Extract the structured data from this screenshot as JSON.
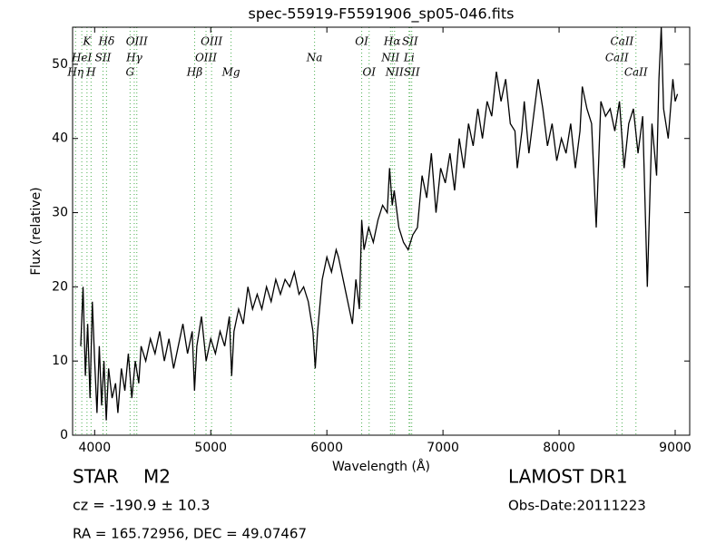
{
  "chart_data": {
    "type": "line",
    "title": "spec-55919-F5591906_sp05-046.fits",
    "x_label": "Wavelength (Å)",
    "y_label": "Flux (relative)",
    "xlim": [
      3810,
      9125
    ],
    "ylim": [
      0,
      55
    ],
    "xticks": [
      4000,
      5000,
      6000,
      7000,
      8000,
      9000
    ],
    "yticks": [
      0,
      10,
      20,
      30,
      40,
      50
    ],
    "series": [
      {
        "name": "Flux",
        "color": "#000000",
        "x": [
          3880,
          3900,
          3920,
          3940,
          3960,
          3980,
          4000,
          4020,
          4040,
          4060,
          4080,
          4100,
          4120,
          4150,
          4180,
          4200,
          4230,
          4260,
          4290,
          4320,
          4350,
          4380,
          4400,
          4440,
          4480,
          4520,
          4560,
          4600,
          4640,
          4680,
          4720,
          4760,
          4800,
          4840,
          4860,
          4880,
          4920,
          4960,
          5000,
          5040,
          5080,
          5120,
          5160,
          5180,
          5200,
          5240,
          5280,
          5320,
          5360,
          5400,
          5440,
          5480,
          5520,
          5560,
          5600,
          5640,
          5680,
          5720,
          5760,
          5800,
          5840,
          5880,
          5900,
          5920,
          5960,
          6000,
          6040,
          6080,
          6100,
          6140,
          6180,
          6220,
          6250,
          6280,
          6300,
          6320,
          6360,
          6400,
          6440,
          6480,
          6520,
          6540,
          6563,
          6580,
          6620,
          6660,
          6700,
          6740,
          6780,
          6820,
          6860,
          6900,
          6940,
          6980,
          7020,
          7060,
          7100,
          7140,
          7180,
          7220,
          7260,
          7300,
          7340,
          7380,
          7420,
          7460,
          7500,
          7540,
          7580,
          7620,
          7640,
          7680,
          7700,
          7740,
          7780,
          7820,
          7860,
          7900,
          7940,
          7980,
          8020,
          8060,
          8100,
          8140,
          8180,
          8200,
          8240,
          8280,
          8320,
          8360,
          8400,
          8440,
          8480,
          8520,
          8560,
          8600,
          8640,
          8680,
          8720,
          8760,
          8800,
          8840,
          8860,
          8880,
          8900,
          8940,
          8980,
          9000,
          9020
        ],
        "values": [
          12,
          20,
          8,
          15,
          5,
          18,
          10,
          3,
          12,
          4,
          10,
          2,
          9,
          5,
          7,
          3,
          9,
          6,
          11,
          5,
          10,
          7,
          12,
          10,
          13,
          11,
          14,
          10,
          13,
          9,
          12,
          15,
          11,
          14,
          6,
          12,
          16,
          10,
          13,
          11,
          14,
          12,
          16,
          8,
          14,
          17,
          15,
          20,
          17,
          19,
          17,
          20,
          18,
          21,
          19,
          21,
          20,
          22,
          19,
          20,
          18,
          14,
          9,
          14,
          21,
          24,
          22,
          25,
          24,
          21,
          18,
          15,
          21,
          17,
          29,
          25,
          28,
          26,
          29,
          31,
          30,
          36,
          31,
          33,
          28,
          26,
          25,
          27,
          28,
          35,
          32,
          38,
          30,
          36,
          34,
          38,
          33,
          40,
          36,
          42,
          39,
          44,
          40,
          45,
          43,
          49,
          45,
          48,
          42,
          41,
          36,
          41,
          45,
          38,
          43,
          48,
          44,
          39,
          42,
          37,
          40,
          38,
          42,
          36,
          41,
          47,
          44,
          42,
          28,
          45,
          43,
          44,
          41,
          45,
          36,
          42,
          44,
          38,
          43,
          20,
          42,
          35,
          48,
          55,
          44,
          40,
          48,
          45,
          46
        ]
      }
    ],
    "lines": [
      {
        "label": "Hη",
        "wavelength": 3835
      },
      {
        "label": "HeI",
        "wavelength": 3889
      },
      {
        "label": "K",
        "wavelength": 3934
      },
      {
        "label": "H",
        "wavelength": 3969
      },
      {
        "label": "SII",
        "wavelength": 4072
      },
      {
        "label": "Hδ",
        "wavelength": 4102
      },
      {
        "label": "G",
        "wavelength": 4305
      },
      {
        "label": "Hγ",
        "wavelength": 4341
      },
      {
        "label": "OIII",
        "wavelength": 4363
      },
      {
        "label": "Hβ",
        "wavelength": 4861
      },
      {
        "label": "OIII",
        "wavelength": 4959
      },
      {
        "label": "OIII",
        "wavelength": 5007
      },
      {
        "label": "Mg",
        "wavelength": 5175
      },
      {
        "label": "Na",
        "wavelength": 5894
      },
      {
        "label": "OI",
        "wavelength": 6300
      },
      {
        "label": "OI",
        "wavelength": 6364
      },
      {
        "label": "NII",
        "wavelength": 6548
      },
      {
        "label": "Hα",
        "wavelength": 6563
      },
      {
        "label": "NII",
        "wavelength": 6583
      },
      {
        "label": "Li",
        "wavelength": 6708
      },
      {
        "label": "SII",
        "wavelength": 6716
      },
      {
        "label": "SII",
        "wavelength": 6731
      },
      {
        "label": "CaII",
        "wavelength": 8498
      },
      {
        "label": "CaII",
        "wavelength": 8542
      },
      {
        "label": "CaII",
        "wavelength": 8662
      }
    ],
    "object_class": "STAR",
    "subclass": "M2",
    "redshift": "cz = -190.9 ± 10.3",
    "coordinates": "RA = 165.72956, DEC = 49.07467",
    "survey": "LAMOST DR1",
    "obs_date": "Obs-Date:20111223"
  }
}
